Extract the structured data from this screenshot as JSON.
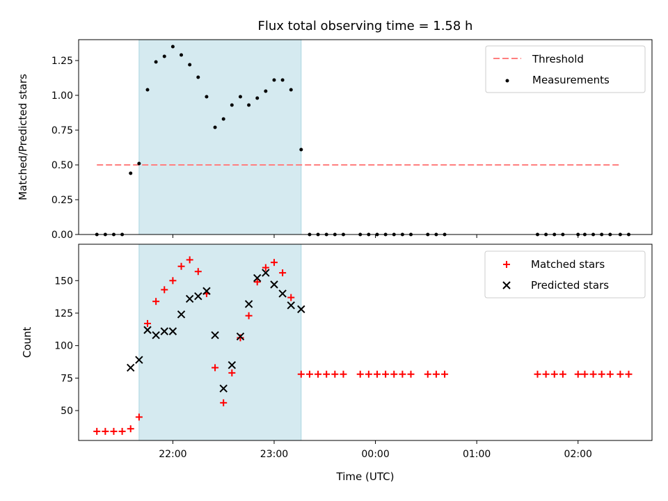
{
  "chart_data": [
    {
      "type": "scatter",
      "title": "Flux total observing time = 1.58 h",
      "xlabel": "",
      "ylabel": "Matched/Predicted stars",
      "ylim": [
        0,
        1.4
      ],
      "y_ticks": [
        "0.00",
        "0.25",
        "0.50",
        "0.75",
        "1.00",
        "1.25"
      ],
      "y_tick_values": [
        0,
        0.25,
        0.5,
        0.75,
        1.0,
        1.25
      ],
      "x_axis": "time (hours since 00:00 UTC)",
      "xlim": [
        -2.93,
        2.73
      ],
      "x_tick_values": [
        -2,
        -1,
        0,
        1,
        2
      ],
      "highlight_span": {
        "x_start": "21:40",
        "x_end": "23:16",
        "color": "#d5eaf0"
      },
      "threshold": {
        "name": "Threshold",
        "value": 0.5,
        "x_start": "21:15",
        "x_end": "02:25",
        "color": "#ff7f7f"
      },
      "series": [
        {
          "name": "Measurements",
          "marker": "dot",
          "color": "#000000",
          "points": [
            [
              "21:15",
              0.0
            ],
            [
              "21:20",
              0.0
            ],
            [
              "21:25",
              0.0
            ],
            [
              "21:30",
              0.0
            ],
            [
              "21:35",
              0.44
            ],
            [
              "21:40",
              0.51
            ],
            [
              "21:45",
              1.04
            ],
            [
              "21:50",
              1.24
            ],
            [
              "21:55",
              1.28
            ],
            [
              "22:00",
              1.35
            ],
            [
              "22:05",
              1.29
            ],
            [
              "22:10",
              1.22
            ],
            [
              "22:15",
              1.13
            ],
            [
              "22:20",
              0.99
            ],
            [
              "22:25",
              0.77
            ],
            [
              "22:30",
              0.83
            ],
            [
              "22:35",
              0.93
            ],
            [
              "22:40",
              0.99
            ],
            [
              "22:45",
              0.93
            ],
            [
              "22:50",
              0.98
            ],
            [
              "22:55",
              1.03
            ],
            [
              "23:00",
              1.11
            ],
            [
              "23:05",
              1.11
            ],
            [
              "23:10",
              1.04
            ],
            [
              "23:16",
              0.61
            ],
            [
              "23:21",
              0.0
            ],
            [
              "23:26",
              0.0
            ],
            [
              "23:31",
              0.0
            ],
            [
              "23:36",
              0.0
            ],
            [
              "23:41",
              0.0
            ],
            [
              "23:51",
              0.0
            ],
            [
              "23:56",
              0.0
            ],
            [
              "00:01",
              0.0
            ],
            [
              "00:06",
              0.0
            ],
            [
              "00:11",
              0.0
            ],
            [
              "00:16",
              0.0
            ],
            [
              "00:21",
              0.0
            ],
            [
              "00:31",
              0.0
            ],
            [
              "00:36",
              0.0
            ],
            [
              "00:41",
              0.0
            ],
            [
              "01:36",
              0.0
            ],
            [
              "01:41",
              0.0
            ],
            [
              "01:46",
              0.0
            ],
            [
              "01:51",
              0.0
            ],
            [
              "02:00",
              0.0
            ],
            [
              "02:04",
              0.0
            ],
            [
              "02:09",
              0.0
            ],
            [
              "02:14",
              0.0
            ],
            [
              "02:19",
              0.0
            ],
            [
              "02:25",
              0.0
            ],
            [
              "02:30",
              0.0
            ]
          ]
        }
      ],
      "legend": {
        "position": "top-right",
        "entries": [
          "Threshold",
          "Measurements"
        ]
      }
    },
    {
      "type": "scatter",
      "title": "",
      "xlabel": "Time (UTC)",
      "ylabel": "Count",
      "ylim": [
        27,
        178
      ],
      "y_ticks": [
        "50",
        "75",
        "100",
        "125",
        "150"
      ],
      "y_tick_values": [
        50,
        75,
        100,
        125,
        150
      ],
      "x_ticks": [
        "22:00",
        "23:00",
        "00:00",
        "01:00",
        "02:00"
      ],
      "x_tick_values": [
        -2,
        -1,
        0,
        1,
        2
      ],
      "xlim": [
        -2.93,
        2.73
      ],
      "highlight_span": {
        "x_start": "21:40",
        "x_end": "23:16",
        "color": "#d5eaf0"
      },
      "series": [
        {
          "name": "Matched stars",
          "marker": "plus",
          "color": "#ff0000",
          "points": [
            [
              "21:15",
              34
            ],
            [
              "21:20",
              34
            ],
            [
              "21:25",
              34
            ],
            [
              "21:30",
              34
            ],
            [
              "21:35",
              36
            ],
            [
              "21:40",
              45
            ],
            [
              "21:45",
              117
            ],
            [
              "21:50",
              134
            ],
            [
              "21:55",
              143
            ],
            [
              "22:00",
              150
            ],
            [
              "22:05",
              161
            ],
            [
              "22:10",
              166
            ],
            [
              "22:15",
              157
            ],
            [
              "22:20",
              140
            ],
            [
              "22:25",
              83
            ],
            [
              "22:30",
              56
            ],
            [
              "22:35",
              79
            ],
            [
              "22:40",
              106
            ],
            [
              "22:45",
              123
            ],
            [
              "22:50",
              149
            ],
            [
              "22:55",
              160
            ],
            [
              "23:00",
              164
            ],
            [
              "23:05",
              156
            ],
            [
              "23:10",
              137
            ],
            [
              "23:16",
              78
            ],
            [
              "23:21",
              78
            ],
            [
              "23:26",
              78
            ],
            [
              "23:31",
              78
            ],
            [
              "23:36",
              78
            ],
            [
              "23:41",
              78
            ],
            [
              "23:51",
              78
            ],
            [
              "23:56",
              78
            ],
            [
              "00:01",
              78
            ],
            [
              "00:06",
              78
            ],
            [
              "00:11",
              78
            ],
            [
              "00:16",
              78
            ],
            [
              "00:21",
              78
            ],
            [
              "00:31",
              78
            ],
            [
              "00:36",
              78
            ],
            [
              "00:41",
              78
            ],
            [
              "01:36",
              78
            ],
            [
              "01:41",
              78
            ],
            [
              "01:46",
              78
            ],
            [
              "01:51",
              78
            ],
            [
              "02:00",
              78
            ],
            [
              "02:04",
              78
            ],
            [
              "02:09",
              78
            ],
            [
              "02:14",
              78
            ],
            [
              "02:19",
              78
            ],
            [
              "02:25",
              78
            ],
            [
              "02:30",
              78
            ]
          ]
        },
        {
          "name": "Predicted stars",
          "marker": "x",
          "color": "#000000",
          "points": [
            [
              "21:35",
              83
            ],
            [
              "21:40",
              89
            ],
            [
              "21:45",
              112
            ],
            [
              "21:50",
              108
            ],
            [
              "21:55",
              111
            ],
            [
              "22:00",
              111
            ],
            [
              "22:05",
              124
            ],
            [
              "22:10",
              136
            ],
            [
              "22:15",
              138
            ],
            [
              "22:20",
              142
            ],
            [
              "22:25",
              108
            ],
            [
              "22:30",
              67
            ],
            [
              "22:35",
              85
            ],
            [
              "22:40",
              107
            ],
            [
              "22:45",
              132
            ],
            [
              "22:50",
              152
            ],
            [
              "22:55",
              156
            ],
            [
              "23:00",
              147
            ],
            [
              "23:05",
              140
            ],
            [
              "23:10",
              131
            ],
            [
              "23:16",
              128
            ]
          ]
        }
      ],
      "legend": {
        "position": "top-right",
        "entries": [
          "Matched stars",
          "Predicted stars"
        ]
      }
    }
  ]
}
